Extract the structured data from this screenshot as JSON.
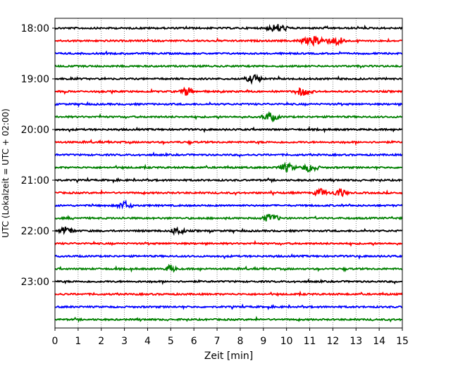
{
  "chart_data": {
    "type": "line",
    "title": "",
    "xlabel": "Zeit  [min]",
    "ylabel": "UTC (Lokalzeit = UTC + 02:00)",
    "xlim": [
      0,
      15
    ],
    "x_ticks": [
      0,
      1,
      2,
      3,
      4,
      5,
      6,
      7,
      8,
      9,
      10,
      11,
      12,
      13,
      14,
      15
    ],
    "x_tick_labels": [
      "0",
      "1",
      "2",
      "3",
      "4",
      "5",
      "6",
      "7",
      "8",
      "9",
      "10",
      "11",
      "12",
      "13",
      "14",
      "15"
    ],
    "y_tick_labels": [
      "18:00",
      "19:00",
      "20:00",
      "21:00",
      "22:00",
      "23:00"
    ],
    "grid": "vertical dotted",
    "colors_cycle": [
      "#000000",
      "#ff0000",
      "#0000ff",
      "#008000"
    ],
    "series": [
      {
        "start": "18:00",
        "color": "#000000",
        "bursts": [
          [
            9.6,
            0.6
          ]
        ]
      },
      {
        "start": "18:15",
        "color": "#ff0000",
        "bursts": [
          [
            11.3,
            1.0
          ],
          [
            12.2,
            0.5
          ]
        ]
      },
      {
        "start": "18:30",
        "color": "#0000ff",
        "bursts": []
      },
      {
        "start": "18:45",
        "color": "#008000",
        "bursts": []
      },
      {
        "start": "19:00",
        "color": "#000000",
        "bursts": [
          [
            8.6,
            0.5
          ]
        ]
      },
      {
        "start": "19:15",
        "color": "#ff0000",
        "bursts": [
          [
            5.7,
            0.4
          ],
          [
            10.7,
            0.5
          ]
        ]
      },
      {
        "start": "19:30",
        "color": "#0000ff",
        "bursts": []
      },
      {
        "start": "19:45",
        "color": "#008000",
        "bursts": [
          [
            9.3,
            0.5
          ]
        ]
      },
      {
        "start": "20:00",
        "color": "#000000",
        "bursts": []
      },
      {
        "start": "20:15",
        "color": "#ff0000",
        "bursts": []
      },
      {
        "start": "20:30",
        "color": "#0000ff",
        "bursts": []
      },
      {
        "start": "20:45",
        "color": "#008000",
        "bursts": [
          [
            10.0,
            0.5
          ],
          [
            11.0,
            0.5
          ]
        ]
      },
      {
        "start": "21:00",
        "color": "#000000",
        "bursts": []
      },
      {
        "start": "21:15",
        "color": "#ff0000",
        "bursts": [
          [
            11.5,
            0.4
          ],
          [
            12.3,
            0.4
          ]
        ]
      },
      {
        "start": "21:30",
        "color": "#0000ff",
        "bursts": [
          [
            3.0,
            0.4
          ]
        ]
      },
      {
        "start": "21:45",
        "color": "#008000",
        "bursts": [
          [
            9.3,
            0.5
          ]
        ]
      },
      {
        "start": "22:00",
        "color": "#000000",
        "bursts": [
          [
            0.5,
            0.4
          ],
          [
            5.3,
            0.4
          ]
        ]
      },
      {
        "start": "22:15",
        "color": "#ff0000",
        "bursts": []
      },
      {
        "start": "22:30",
        "color": "#0000ff",
        "bursts": []
      },
      {
        "start": "22:45",
        "color": "#008000",
        "bursts": [
          [
            5.0,
            0.3
          ]
        ]
      },
      {
        "start": "23:00",
        "color": "#000000",
        "bursts": []
      },
      {
        "start": "23:15",
        "color": "#ff0000",
        "bursts": []
      },
      {
        "start": "23:30",
        "color": "#0000ff",
        "bursts": []
      },
      {
        "start": "23:45",
        "color": "#008000",
        "bursts": []
      }
    ]
  }
}
